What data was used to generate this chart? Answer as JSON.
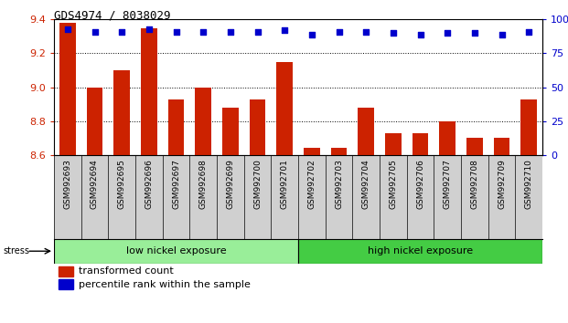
{
  "title": "GDS4974 / 8038029",
  "categories": [
    "GSM992693",
    "GSM992694",
    "GSM992695",
    "GSM992696",
    "GSM992697",
    "GSM992698",
    "GSM992699",
    "GSM992700",
    "GSM992701",
    "GSM992702",
    "GSM992703",
    "GSM992704",
    "GSM992705",
    "GSM992706",
    "GSM992707",
    "GSM992708",
    "GSM992709",
    "GSM992710"
  ],
  "bar_values": [
    9.38,
    9.0,
    9.1,
    9.35,
    8.93,
    9.0,
    8.88,
    8.93,
    9.15,
    8.64,
    8.64,
    8.88,
    8.73,
    8.73,
    8.8,
    8.7,
    8.7,
    8.93
  ],
  "percentile_values": [
    93,
    91,
    91,
    93,
    91,
    91,
    91,
    91,
    92,
    89,
    91,
    91,
    90,
    89,
    90,
    90,
    89,
    91
  ],
  "ylim_left": [
    8.6,
    9.4
  ],
  "ylim_right": [
    0,
    100
  ],
  "yticks_left": [
    8.6,
    8.8,
    9.0,
    9.2,
    9.4
  ],
  "yticks_right": [
    0,
    25,
    50,
    75,
    100
  ],
  "bar_color": "#cc2200",
  "dot_color": "#0000cc",
  "bar_bottom": 8.6,
  "group1_label": "low nickel exposure",
  "group2_label": "high nickel exposure",
  "group1_count": 9,
  "group1_color": "#99ee99",
  "group2_color": "#44cc44",
  "stress_label": "stress",
  "legend1": "transformed count",
  "legend2": "percentile rank within the sample",
  "tick_bg_color": "#d0d0d0",
  "gridline_color": "#000000",
  "gridline_style": ":"
}
